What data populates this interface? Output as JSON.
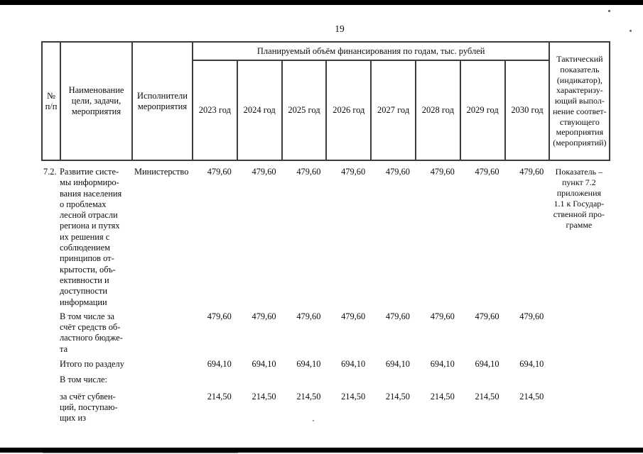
{
  "page": {
    "number": "19"
  },
  "table": {
    "header": {
      "num": "№\nп/п",
      "name": "Наименование\nцели, задачи,\nмероприятия",
      "executors": "Исполнители\nмероприятия",
      "finance_title": "Планируемый объём финансирования по годам, тыс. рублей",
      "years": [
        "2023 год",
        "2024 год",
        "2025 год",
        "2026 год",
        "2027 год",
        "2028 год",
        "2029 год",
        "2030 год"
      ],
      "indicator": "Тактический\nпоказатель\n(индикатор),\nхарактеризу-\nющий выпол-\nнение соответ-\nствующего\nмероприятия\n(мероприятий)"
    },
    "rows": [
      {
        "num": "7.2.",
        "name": "Развитие систе-\nмы информиро-\nвания населения\nо проблемах\nлесной отрасли\nрегиона и путях\nих решения с\nсоблюдением\nпринципов от-\nкрытости, объ-\nективности и\nдоступности\nинформации",
        "executor": "Министерство",
        "values": [
          "479,60",
          "479,60",
          "479,60",
          "479,60",
          "479,60",
          "479,60",
          "479,60",
          "479,60"
        ],
        "indicator": "Показатель –\nпункт 7.2\nприложения\n1.1 к Государ-\nственной про-\nграмме"
      },
      {
        "num": "",
        "name": "В том числе за\nсчёт средств об-\nластного бюдже-\nта",
        "executor": "",
        "values": [
          "479,60",
          "479,60",
          "479,60",
          "479,60",
          "479,60",
          "479,60",
          "479,60",
          "479,60"
        ],
        "indicator": ""
      },
      {
        "num": "",
        "name": "Итого по разделу",
        "executor": "",
        "values": [
          "694,10",
          "694,10",
          "694,10",
          "694,10",
          "694,10",
          "694,10",
          "694,10",
          "694,10"
        ],
        "indicator": ""
      },
      {
        "num": "",
        "name": "В том числе:",
        "executor": "",
        "values": [
          "",
          "",
          "",
          "",
          "",
          "",
          "",
          ""
        ],
        "indicator": ""
      },
      {
        "num": "",
        "name": "за счёт субвен-\nций, поступаю-\nщих из",
        "executor": "",
        "values": [
          "214,50",
          "214,50",
          "214,50",
          "214,50",
          "214,50",
          "214,50",
          "214,50",
          "214,50"
        ],
        "indicator": ""
      }
    ]
  }
}
